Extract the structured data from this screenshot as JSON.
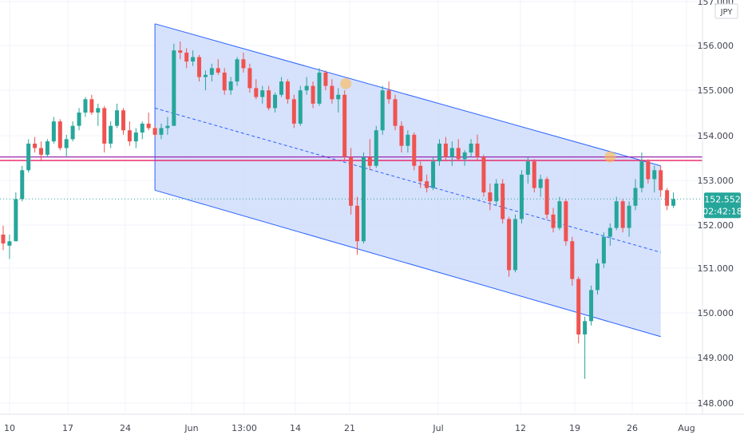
{
  "chart_data": {
    "type": "candlestick",
    "currency": "JPY",
    "colors": {
      "up": "#26a69a",
      "down": "#ef5350",
      "channel_line": "#2962ff",
      "channel_fill": "#cfdcfb",
      "resistance": "#9c27b0",
      "resistance_2": "#e91e63",
      "marker": "#ffb74d",
      "last_price_bg": "#26a69a",
      "grid": "#f0f3fa"
    },
    "y_ticks": [
      "148.000",
      "149.000",
      "150.000",
      "151.000",
      "152.000",
      "153.000",
      "154.000",
      "155.000",
      "156.000",
      "157.000"
    ],
    "x_ticks": [
      "10",
      "17",
      "24",
      "Jun",
      "13:00",
      "14",
      "21",
      "Jul",
      "12",
      "19",
      "26",
      "Aug"
    ],
    "last_price": "152.552",
    "countdown": "02:42:18",
    "resistance_levels": [
      153.5,
      153.42
    ],
    "channel": {
      "upper_start": [
        24,
        156.5
      ],
      "upper_end": [
        104,
        153.3
      ],
      "lower_start": [
        24,
        152.75
      ],
      "lower_end": [
        104,
        149.45
      ],
      "mid_start": [
        24,
        154.6
      ],
      "mid_end": [
        104,
        151.35
      ]
    },
    "markers": [
      [
        54.2,
        155.15
      ],
      [
        96.0,
        153.5
      ]
    ],
    "grid": true,
    "ohlc": [
      [
        151.75,
        151.95,
        151.4,
        151.55
      ],
      [
        151.5,
        151.75,
        151.2,
        151.6
      ],
      [
        151.6,
        152.7,
        151.6,
        152.55
      ],
      [
        152.55,
        153.3,
        152.5,
        153.2
      ],
      [
        153.2,
        153.9,
        153.15,
        153.8
      ],
      [
        153.8,
        153.95,
        153.6,
        153.7
      ],
      [
        153.7,
        153.85,
        153.4,
        153.55
      ],
      [
        153.55,
        153.9,
        153.5,
        153.85
      ],
      [
        153.85,
        154.4,
        153.8,
        154.3
      ],
      [
        154.3,
        154.35,
        153.65,
        153.7
      ],
      [
        153.7,
        154.0,
        153.5,
        153.9
      ],
      [
        153.9,
        154.3,
        153.85,
        154.2
      ],
      [
        154.2,
        154.6,
        154.1,
        154.5
      ],
      [
        154.5,
        154.85,
        154.4,
        154.8
      ],
      [
        154.8,
        154.9,
        154.45,
        154.5
      ],
      [
        154.5,
        154.7,
        154.2,
        154.6
      ],
      [
        154.6,
        154.65,
        153.6,
        153.8
      ],
      [
        153.8,
        154.3,
        153.7,
        154.2
      ],
      [
        154.2,
        154.7,
        154.15,
        154.55
      ],
      [
        154.55,
        154.6,
        154.0,
        154.1
      ],
      [
        154.1,
        154.3,
        153.75,
        153.85
      ],
      [
        153.85,
        154.15,
        153.7,
        154.05
      ],
      [
        154.05,
        154.3,
        153.9,
        154.25
      ],
      [
        154.25,
        154.5,
        154.1,
        154.15
      ],
      [
        154.15,
        154.2,
        153.95,
        154.0
      ],
      [
        154.0,
        154.25,
        153.9,
        154.15
      ],
      [
        154.15,
        154.4,
        154.0,
        154.2
      ],
      [
        154.2,
        156.05,
        154.2,
        155.9
      ],
      [
        155.9,
        156.1,
        155.7,
        155.85
      ],
      [
        155.85,
        155.95,
        155.5,
        155.65
      ],
      [
        155.65,
        155.9,
        155.55,
        155.75
      ],
      [
        155.75,
        155.8,
        155.2,
        155.3
      ],
      [
        155.3,
        155.45,
        155.0,
        155.35
      ],
      [
        155.35,
        155.6,
        155.2,
        155.5
      ],
      [
        155.5,
        155.7,
        155.35,
        155.4
      ],
      [
        155.4,
        155.5,
        154.9,
        155.0
      ],
      [
        155.0,
        155.3,
        154.9,
        155.2
      ],
      [
        155.2,
        155.75,
        155.1,
        155.7
      ],
      [
        155.7,
        155.85,
        155.4,
        155.5
      ],
      [
        155.5,
        155.6,
        154.95,
        155.05
      ],
      [
        155.05,
        155.25,
        154.8,
        154.85
      ],
      [
        154.85,
        155.1,
        154.7,
        155.0
      ],
      [
        155.0,
        155.1,
        154.55,
        154.6
      ],
      [
        154.6,
        154.95,
        154.5,
        154.9
      ],
      [
        154.9,
        155.3,
        154.85,
        155.2
      ],
      [
        155.2,
        155.25,
        154.7,
        154.8
      ],
      [
        154.8,
        154.9,
        154.15,
        154.25
      ],
      [
        154.25,
        155.1,
        154.2,
        155.0
      ],
      [
        155.0,
        155.3,
        154.9,
        155.1
      ],
      [
        155.1,
        155.2,
        154.6,
        154.7
      ],
      [
        154.7,
        155.5,
        154.65,
        155.4
      ],
      [
        155.4,
        155.45,
        155.0,
        155.1
      ],
      [
        155.1,
        155.25,
        154.7,
        154.8
      ],
      [
        154.8,
        155.05,
        154.5,
        154.9
      ],
      [
        154.9,
        155.0,
        153.4,
        153.5
      ],
      [
        153.5,
        153.7,
        152.2,
        152.4
      ],
      [
        152.4,
        152.6,
        151.3,
        151.6
      ],
      [
        151.6,
        153.6,
        151.55,
        153.5
      ],
      [
        153.5,
        153.9,
        153.2,
        153.3
      ],
      [
        153.3,
        154.2,
        153.25,
        154.1
      ],
      [
        154.1,
        155.1,
        154.0,
        155.0
      ],
      [
        155.0,
        155.2,
        154.7,
        154.8
      ],
      [
        154.8,
        154.9,
        154.1,
        154.2
      ],
      [
        154.2,
        154.3,
        153.6,
        153.75
      ],
      [
        153.75,
        154.1,
        153.6,
        154.0
      ],
      [
        154.0,
        154.05,
        153.2,
        153.3
      ],
      [
        153.3,
        153.4,
        152.8,
        152.95
      ],
      [
        152.95,
        153.1,
        152.7,
        152.8
      ],
      [
        152.8,
        153.5,
        152.75,
        153.4
      ],
      [
        153.4,
        153.9,
        153.3,
        153.8
      ],
      [
        153.8,
        153.95,
        153.4,
        153.5
      ],
      [
        153.5,
        153.85,
        153.3,
        153.7
      ],
      [
        153.7,
        153.9,
        153.4,
        153.45
      ],
      [
        153.45,
        153.65,
        153.3,
        153.6
      ],
      [
        153.6,
        153.9,
        153.5,
        153.8
      ],
      [
        153.8,
        154.0,
        153.4,
        153.5
      ],
      [
        153.5,
        153.55,
        152.6,
        152.7
      ],
      [
        152.7,
        152.9,
        152.3,
        152.5
      ],
      [
        152.5,
        153.0,
        152.4,
        152.9
      ],
      [
        152.9,
        153.0,
        152.0,
        152.1
      ],
      [
        152.1,
        152.15,
        150.8,
        150.95
      ],
      [
        150.95,
        152.2,
        150.9,
        152.1
      ],
      [
        152.1,
        153.2,
        152.0,
        153.1
      ],
      [
        153.1,
        153.5,
        152.9,
        153.4
      ],
      [
        153.4,
        153.45,
        152.7,
        152.8
      ],
      [
        152.8,
        153.1,
        152.6,
        153.0
      ],
      [
        153.0,
        153.05,
        152.1,
        152.2
      ],
      [
        152.2,
        152.35,
        151.8,
        151.9
      ],
      [
        151.9,
        152.6,
        151.85,
        152.5
      ],
      [
        152.5,
        152.55,
        151.5,
        151.6
      ],
      [
        151.6,
        151.7,
        150.6,
        150.75
      ],
      [
        150.75,
        150.8,
        149.3,
        149.5
      ],
      [
        149.5,
        149.9,
        148.5,
        149.8
      ],
      [
        149.8,
        150.6,
        149.7,
        150.5
      ],
      [
        150.5,
        151.2,
        150.4,
        151.1
      ],
      [
        151.1,
        151.8,
        151.0,
        151.7
      ],
      [
        151.7,
        152.0,
        151.5,
        151.9
      ],
      [
        151.9,
        152.6,
        151.85,
        152.5
      ],
      [
        152.5,
        152.55,
        151.8,
        151.9
      ],
      [
        151.9,
        152.5,
        151.7,
        152.4
      ],
      [
        152.4,
        153.0,
        152.3,
        152.8
      ],
      [
        152.8,
        153.6,
        152.7,
        153.4
      ],
      [
        153.4,
        153.45,
        152.9,
        153.0
      ],
      [
        153.0,
        153.3,
        152.7,
        153.2
      ],
      [
        153.2,
        153.3,
        152.6,
        152.75
      ],
      [
        152.75,
        152.8,
        152.3,
        152.4
      ],
      [
        152.4,
        152.7,
        152.35,
        152.55
      ]
    ]
  }
}
